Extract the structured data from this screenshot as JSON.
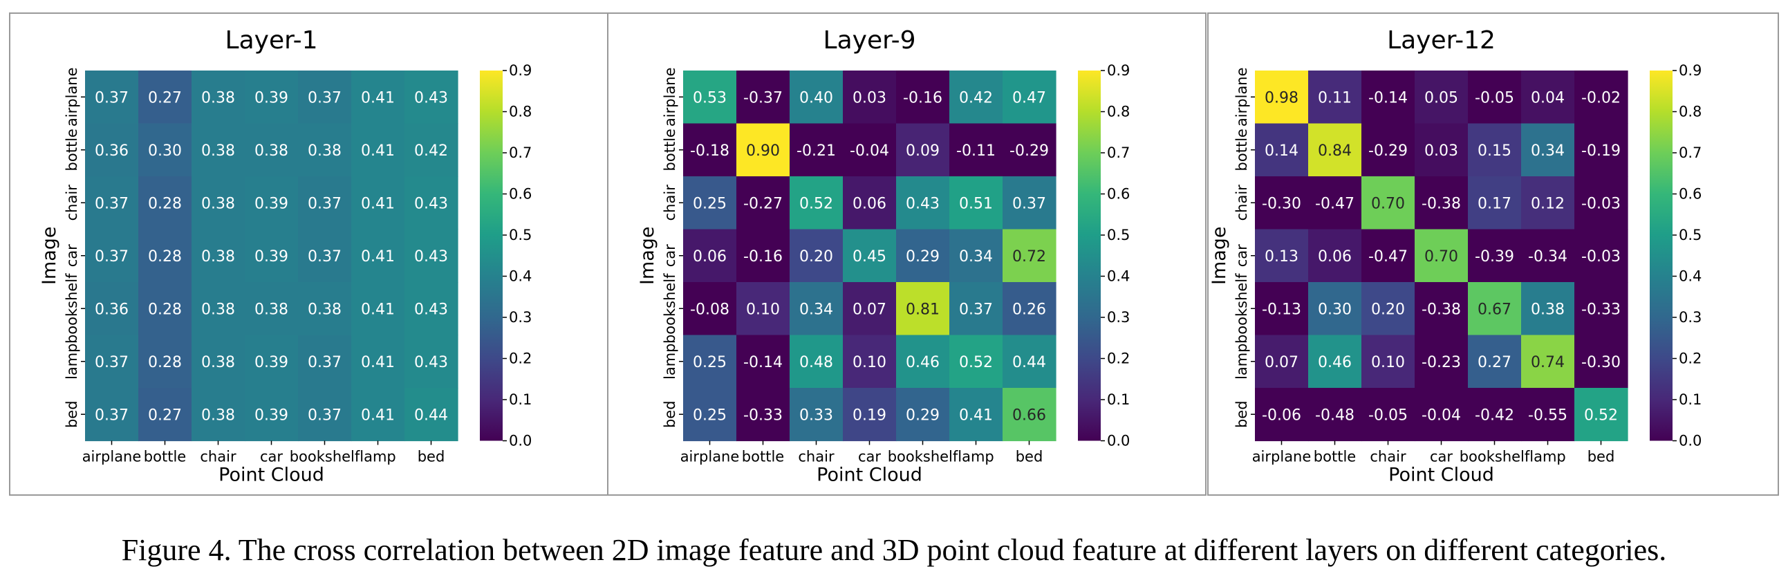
{
  "figure": {
    "caption": "Figure 4. The cross correlation between 2D image feature and 3D point cloud feature at different layers on different categories."
  },
  "colormap": {
    "name": "viridis",
    "stops": [
      "#440154",
      "#482878",
      "#3e4989",
      "#31688e",
      "#26828e",
      "#1f9e89",
      "#35b779",
      "#6ece58",
      "#b5de2b",
      "#fde725"
    ]
  },
  "chart_data": [
    {
      "type": "heatmap",
      "title": "Layer-1",
      "xlabel": "Point Cloud",
      "ylabel": "Image",
      "x_categories": [
        "airplane",
        "bottle",
        "chair",
        "car",
        "bookshelf",
        "lamp",
        "bed"
      ],
      "y_categories": [
        "airplane",
        "bottle",
        "chair",
        "car",
        "bookshelf",
        "lamp",
        "bed"
      ],
      "values": [
        [
          0.37,
          0.27,
          0.38,
          0.39,
          0.37,
          0.41,
          0.43
        ],
        [
          0.36,
          0.3,
          0.38,
          0.38,
          0.38,
          0.41,
          0.42
        ],
        [
          0.37,
          0.28,
          0.38,
          0.39,
          0.37,
          0.41,
          0.43
        ],
        [
          0.37,
          0.28,
          0.38,
          0.39,
          0.37,
          0.41,
          0.43
        ],
        [
          0.36,
          0.28,
          0.38,
          0.38,
          0.38,
          0.41,
          0.43
        ],
        [
          0.37,
          0.28,
          0.38,
          0.39,
          0.37,
          0.41,
          0.43
        ],
        [
          0.37,
          0.27,
          0.38,
          0.39,
          0.37,
          0.41,
          0.44
        ]
      ],
      "colorbar_range": [
        0.0,
        0.9
      ],
      "colorbar_ticks": [
        "0.0",
        "0.1",
        "0.2",
        "0.3",
        "0.4",
        "0.5",
        "0.6",
        "0.7",
        "0.8",
        "0.9"
      ]
    },
    {
      "type": "heatmap",
      "title": "Layer-9",
      "xlabel": "Point Cloud",
      "ylabel": "Image",
      "x_categories": [
        "airplane",
        "bottle",
        "chair",
        "car",
        "bookshelf",
        "lamp",
        "bed"
      ],
      "y_categories": [
        "airplane",
        "bottle",
        "chair",
        "car",
        "bookshelf",
        "lamp",
        "bed"
      ],
      "values": [
        [
          0.53,
          -0.37,
          0.4,
          0.03,
          -0.16,
          0.42,
          0.47
        ],
        [
          -0.18,
          0.9,
          -0.21,
          -0.04,
          0.09,
          -0.11,
          -0.29
        ],
        [
          0.25,
          -0.27,
          0.52,
          0.06,
          0.43,
          0.51,
          0.37
        ],
        [
          0.06,
          -0.16,
          0.2,
          0.45,
          0.29,
          0.34,
          0.72
        ],
        [
          -0.08,
          0.1,
          0.34,
          0.07,
          0.81,
          0.37,
          0.26
        ],
        [
          0.25,
          -0.14,
          0.48,
          0.1,
          0.46,
          0.52,
          0.44
        ],
        [
          0.25,
          -0.33,
          0.33,
          0.19,
          0.29,
          0.41,
          0.66
        ]
      ],
      "colorbar_range": [
        0.0,
        0.9
      ],
      "colorbar_ticks": [
        "0.0",
        "0.1",
        "0.2",
        "0.3",
        "0.4",
        "0.5",
        "0.6",
        "0.7",
        "0.8",
        "0.9"
      ]
    },
    {
      "type": "heatmap",
      "title": "Layer-12",
      "xlabel": "Point Cloud",
      "ylabel": "Image",
      "x_categories": [
        "airplane",
        "bottle",
        "chair",
        "car",
        "bookshelf",
        "lamp",
        "bed"
      ],
      "y_categories": [
        "airplane",
        "bottle",
        "chair",
        "car",
        "bookshelf",
        "lamp",
        "bed"
      ],
      "values": [
        [
          0.98,
          0.11,
          -0.14,
          0.05,
          -0.05,
          0.04,
          -0.02
        ],
        [
          0.14,
          0.84,
          -0.29,
          0.03,
          0.15,
          0.34,
          -0.19
        ],
        [
          -0.3,
          -0.47,
          0.7,
          -0.38,
          0.17,
          0.12,
          -0.03
        ],
        [
          0.13,
          0.06,
          -0.47,
          0.7,
          -0.39,
          -0.34,
          -0.03
        ],
        [
          -0.13,
          0.3,
          0.2,
          -0.38,
          0.67,
          0.38,
          -0.33
        ],
        [
          0.07,
          0.46,
          0.1,
          -0.23,
          0.27,
          0.74,
          -0.3
        ],
        [
          -0.06,
          -0.48,
          -0.05,
          -0.04,
          -0.42,
          -0.55,
          0.52
        ]
      ],
      "colorbar_range": [
        0.0,
        0.9
      ],
      "colorbar_ticks": [
        "0.0",
        "0.1",
        "0.2",
        "0.3",
        "0.4",
        "0.5",
        "0.6",
        "0.7",
        "0.8",
        "0.9"
      ]
    }
  ]
}
